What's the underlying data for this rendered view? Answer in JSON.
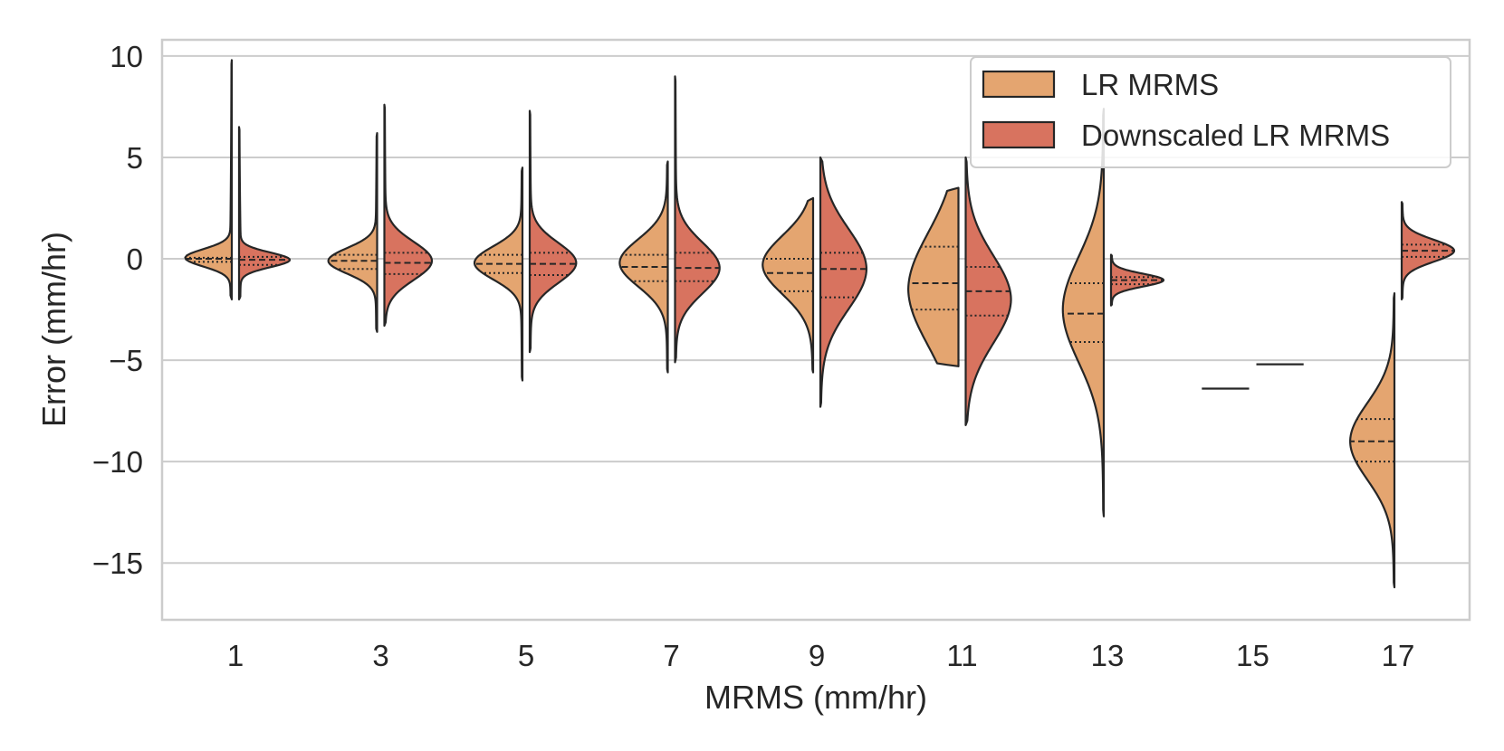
{
  "chart_data": {
    "type": "violin",
    "title": "",
    "xlabel": "MRMS (mm/hr)",
    "ylabel": "Error (mm/hr)",
    "ylim": [
      -17.8,
      10.8
    ],
    "yticks": [
      10,
      5,
      0,
      -5,
      -10,
      -15
    ],
    "ytick_labels": [
      "10",
      "5",
      "0",
      "−5",
      "−10",
      "−15"
    ],
    "categories": [
      "1",
      "3",
      "5",
      "7",
      "9",
      "11",
      "13",
      "15",
      "17"
    ],
    "grid": true,
    "legend_position": "top-right",
    "colors": {
      "LR MRMS": "#e4a570",
      "Downscaled LR MRMS": "#d8735f",
      "outline": "#262626",
      "grid": "#cccccc"
    },
    "series": [
      {
        "name": "LR MRMS",
        "side": "left",
        "values": [
          {
            "min": -2.0,
            "max": 9.8,
            "q1": -0.15,
            "median": 0.0,
            "q3": 0.05,
            "peak": 0.05
          },
          {
            "min": -3.6,
            "max": 6.2,
            "q1": -0.5,
            "median": -0.1,
            "q3": 0.2,
            "peak": -0.1
          },
          {
            "min": -6.0,
            "max": 4.5,
            "q1": -0.7,
            "median": -0.25,
            "q3": 0.2,
            "peak": -0.2
          },
          {
            "min": -5.6,
            "max": 4.8,
            "q1": -1.1,
            "median": -0.4,
            "q3": 0.2,
            "peak": -0.2
          },
          {
            "min": -5.6,
            "max": 3.0,
            "q1": -1.6,
            "median": -0.7,
            "q3": 0.0,
            "peak": -0.3
          },
          {
            "min": -5.3,
            "max": 3.5,
            "q1": -2.5,
            "median": -1.2,
            "q3": 0.6,
            "peak": -1.5
          },
          {
            "min": -12.7,
            "max": 7.4,
            "q1": -4.1,
            "median": -2.7,
            "q3": -1.2,
            "peak": -2.5
          },
          {
            "min": -6.4,
            "max": -6.4,
            "q1": -6.4,
            "median": -6.4,
            "q3": -6.4,
            "peak": -6.4
          },
          {
            "min": -16.2,
            "max": -1.7,
            "q1": -10.0,
            "median": -9.0,
            "q3": -7.9,
            "peak": -9.0
          }
        ]
      },
      {
        "name": "Downscaled LR MRMS",
        "side": "right",
        "values": [
          {
            "min": -2.0,
            "max": 6.5,
            "q1": -0.3,
            "median": -0.05,
            "q3": 0.1,
            "peak": -0.05
          },
          {
            "min": -3.3,
            "max": 7.6,
            "q1": -0.75,
            "median": -0.2,
            "q3": 0.3,
            "peak": -0.1
          },
          {
            "min": -4.6,
            "max": 7.3,
            "q1": -0.8,
            "median": -0.25,
            "q3": 0.3,
            "peak": -0.2
          },
          {
            "min": -5.1,
            "max": 9.0,
            "q1": -1.1,
            "median": -0.45,
            "q3": 0.3,
            "peak": -0.45
          },
          {
            "min": -7.3,
            "max": 5.0,
            "q1": -1.9,
            "median": -0.5,
            "q3": 0.3,
            "peak": -0.5
          },
          {
            "min": -8.2,
            "max": 5.0,
            "q1": -2.8,
            "median": -1.6,
            "q3": -0.4,
            "peak": -2.0
          },
          {
            "min": -2.3,
            "max": 0.2,
            "q1": -1.25,
            "median": -1.05,
            "q3": -0.9,
            "peak": -1.05
          },
          {
            "min": -5.2,
            "max": -5.2,
            "q1": -5.2,
            "median": -5.2,
            "q3": -5.2,
            "peak": -5.2
          },
          {
            "min": -2.0,
            "max": 2.8,
            "q1": 0.1,
            "median": 0.4,
            "q3": 0.7,
            "peak": 0.4
          }
        ]
      }
    ]
  }
}
